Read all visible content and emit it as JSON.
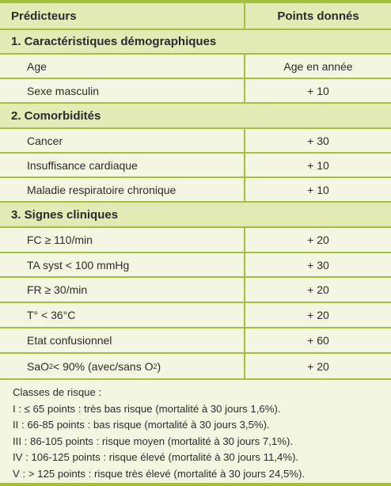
{
  "header": {
    "left": "Prédicteurs",
    "right": "Points donnés"
  },
  "sections": [
    {
      "title": "1. Caractéristiques démographiques",
      "items": [
        {
          "label": "Age",
          "points": "Age en année"
        },
        {
          "label": "Sexe masculin",
          "points": "+ 10"
        }
      ]
    },
    {
      "title": "2. Comorbidités",
      "items": [
        {
          "label": "Cancer",
          "points": "+ 30"
        },
        {
          "label": "Insuffisance cardiaque",
          "points": "+ 10"
        },
        {
          "label": "Maladie respiratoire chronique",
          "points": "+ 10"
        }
      ]
    },
    {
      "title": "3. Signes cliniques",
      "items": [
        {
          "label": "FC ≥ 110/min",
          "points": "+ 20"
        },
        {
          "label": "TA syst < 100 mmHg",
          "points": "+ 30"
        },
        {
          "label": "FR ≥ 30/min",
          "points": "+ 20"
        },
        {
          "label": "T° < 36°C",
          "points": "+ 20"
        },
        {
          "label": "Etat confusionnel",
          "points": "+ 60"
        },
        {
          "label_parts": [
            "SaO",
            "2",
            " < 90% (avec/sans O",
            "2",
            ")"
          ],
          "points": "+ 20"
        }
      ]
    }
  ],
  "risk_classes": {
    "title": "Classes de risque :",
    "lines": [
      "I : ≤ 65 points : très bas risque (mortalité à 30 jours 1,6%).",
      "II : 66-85 points : bas risque (mortalité à 30 jours 3,5%).",
      "III : 86-105 points : risque moyen (mortalité à 30 jours 7,1%).",
      "IV : 106-125 points : risque élevé (mortalité à 30 jours 11,4%).",
      "V : > 125 points : risque très élevé (mortalité à 30 jours 24,5%)."
    ]
  }
}
